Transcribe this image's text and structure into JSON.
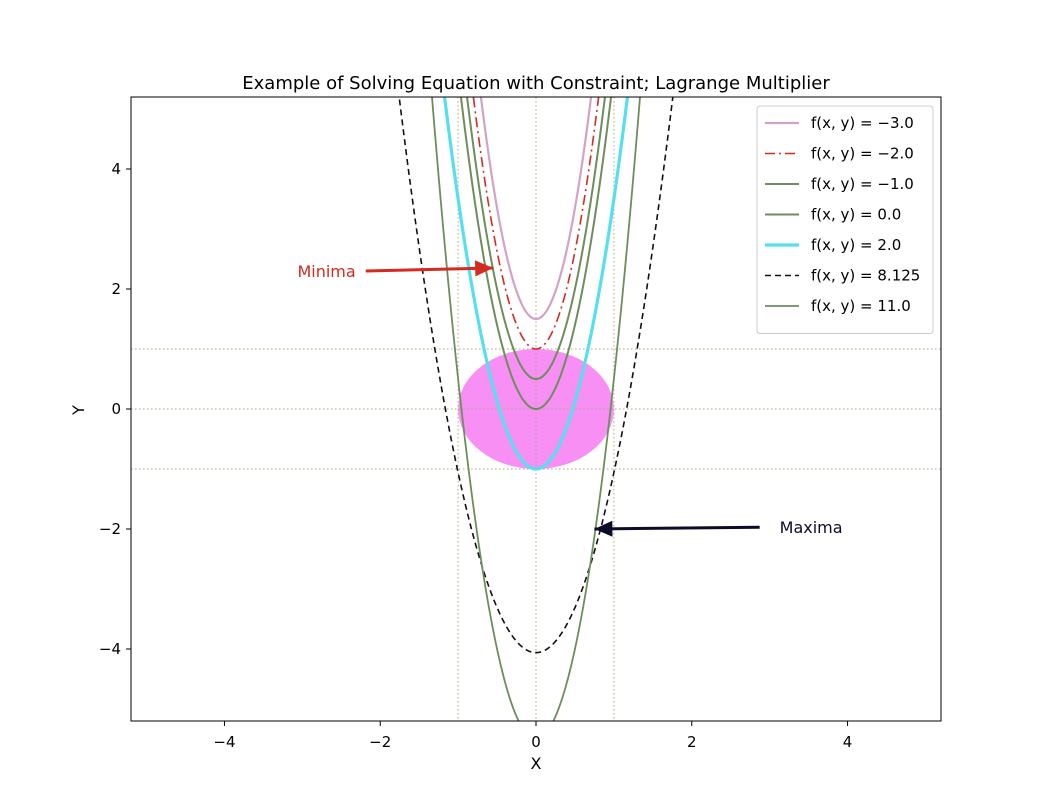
{
  "chart_data": {
    "type": "line",
    "title": "Example of Solving Equation with Constraint; Lagrange Multiplier",
    "xlabel": "X",
    "ylabel": "Y",
    "xlim": [
      -5.2,
      5.2
    ],
    "ylim": [
      -5.2,
      5.2
    ],
    "xticks": [
      -4,
      -2,
      0,
      2,
      4
    ],
    "yticks": [
      -4,
      -2,
      0,
      2,
      4
    ],
    "tick_labels_x": [
      "−4",
      "−2",
      "0",
      "2",
      "4"
    ],
    "tick_labels_y": [
      "−4",
      "−2",
      "0",
      "2",
      "4"
    ],
    "grid": "dotted reference lines at x = -1, 0, 1 and y = -1, 0, 1",
    "reference_lines": {
      "x": [
        -1,
        0,
        1
      ],
      "y": [
        -1,
        0,
        1
      ]
    },
    "constraint_region": {
      "shape": "ellipse",
      "center": [
        0,
        0
      ],
      "rx": 1,
      "ry": 1,
      "color": "#f78ff4"
    },
    "legend_position": "top-right",
    "series": [
      {
        "name": "f(x,y) = −3.0",
        "label_fx": "f(x, y) = −3.0",
        "vertex": 1.5,
        "coef": 7.4,
        "color": "#d4a2c4",
        "style": "solid",
        "width": 2.2
      },
      {
        "name": "f(x,y) = −2.0",
        "label_fx": "f(x, y) = −2.0",
        "vertex": 1.0,
        "coef": 6.5,
        "color": "#d52a1f",
        "style": "dashdot",
        "width": 1.6
      },
      {
        "name": "f(x,y) = −1.0",
        "label_fx": "f(x, y) = −1.0",
        "vertex": 0.5,
        "coef": 6.0,
        "color": "#6d8e5c",
        "style": "solid",
        "width": 2.0
      },
      {
        "name": "f(x,y) = 0.0",
        "label_fx": "f(x, y) = 0.0",
        "vertex": 0.0,
        "coef": 5.6,
        "color": "#6d8e5c",
        "style": "solid",
        "width": 2.0
      },
      {
        "name": "f(x,y) = 2.0",
        "label_fx": "f(x, y) = 2.0",
        "vertex": -1.0,
        "coef": 4.5,
        "color": "#55e0ee",
        "style": "solid",
        "width": 3.2
      },
      {
        "name": "f(x,y) = 8.125",
        "label_fx": "f(x, y) = 8.125",
        "vertex": -4.06,
        "coef": 3.0,
        "color": "#111111",
        "style": "dashed",
        "width": 1.6
      },
      {
        "name": "f(x,y) = 11.0",
        "label_fx": "f(x, y) = 11.0",
        "vertex": -5.5,
        "coef": 6.0,
        "color": "#6d8e5c",
        "style": "solid",
        "width": 1.8
      }
    ],
    "annotations": [
      {
        "text": "Minima",
        "text_at": [
          -2.7,
          2.3
        ],
        "point_at": [
          -0.55,
          2.35
        ],
        "color": "#d52a1f"
      },
      {
        "text": "Maxima",
        "text_at": [
          3.0,
          -1.97
        ],
        "point_at": [
          0.75,
          -2.0
        ],
        "color": "#0b0b2a"
      }
    ]
  }
}
